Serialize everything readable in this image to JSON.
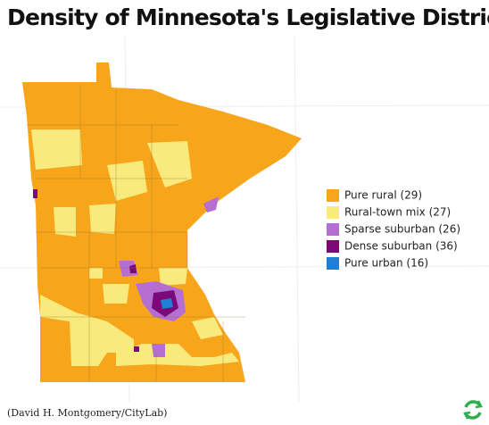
{
  "title": "Density of Minnesota's Legislative Districts",
  "legend": [
    {
      "label": "Pure rural (29)",
      "color": "#f7a61c"
    },
    {
      "label": "Rural-town mix (27)",
      "color": "#f8ea7c"
    },
    {
      "label": "Sparse suburban (26)",
      "color": "#b56fd3"
    },
    {
      "label": "Dense suburban (36)",
      "color": "#7b0a78"
    },
    {
      "label": "Pure urban (16)",
      "color": "#1e7fd4"
    }
  ],
  "credit": "(David H. Montgomery/CityLab)"
}
